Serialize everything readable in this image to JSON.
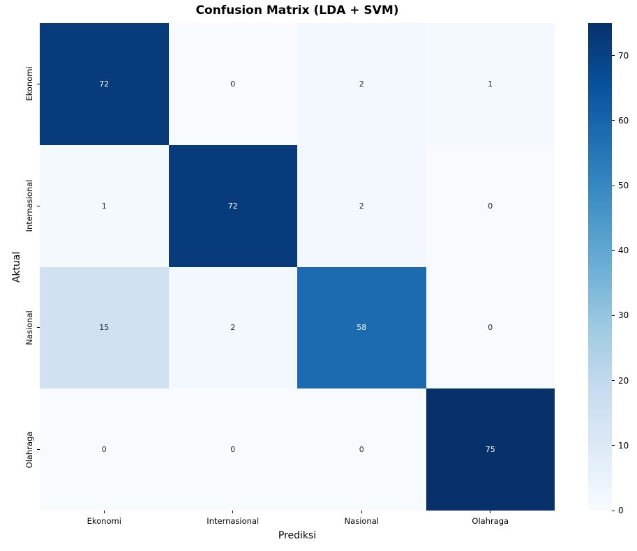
{
  "chart_data": {
    "type": "heatmap",
    "title": "Confusion Matrix (LDA + SVM)",
    "xlabel": "Prediksi",
    "ylabel": "Aktual",
    "x_categories": [
      "Ekonomi",
      "Internasional",
      "Nasional",
      "Olahraga"
    ],
    "y_categories": [
      "Ekonomi",
      "Internasional",
      "Nasional",
      "Olahraga"
    ],
    "matrix": [
      [
        72,
        0,
        2,
        1
      ],
      [
        1,
        72,
        2,
        0
      ],
      [
        15,
        2,
        58,
        0
      ],
      [
        0,
        0,
        0,
        75
      ]
    ],
    "vmin": 0,
    "vmax": 75,
    "colormap": "Blues",
    "annotated": true,
    "grid": false,
    "colorbar_position": "right",
    "colorbar_ticks": [
      0,
      10,
      20,
      30,
      40,
      50,
      60,
      70
    ]
  },
  "colors": {
    "background": "#ffffff",
    "cmap_anchors": [
      "#f7fbff",
      "#deebf7",
      "#c6dbef",
      "#9ecae1",
      "#6baed6",
      "#4292c6",
      "#2171b5",
      "#08519c",
      "#08306b"
    ],
    "annotation_dark": "#262626",
    "annotation_light": "#ffffff",
    "tick_color": "#000000"
  }
}
